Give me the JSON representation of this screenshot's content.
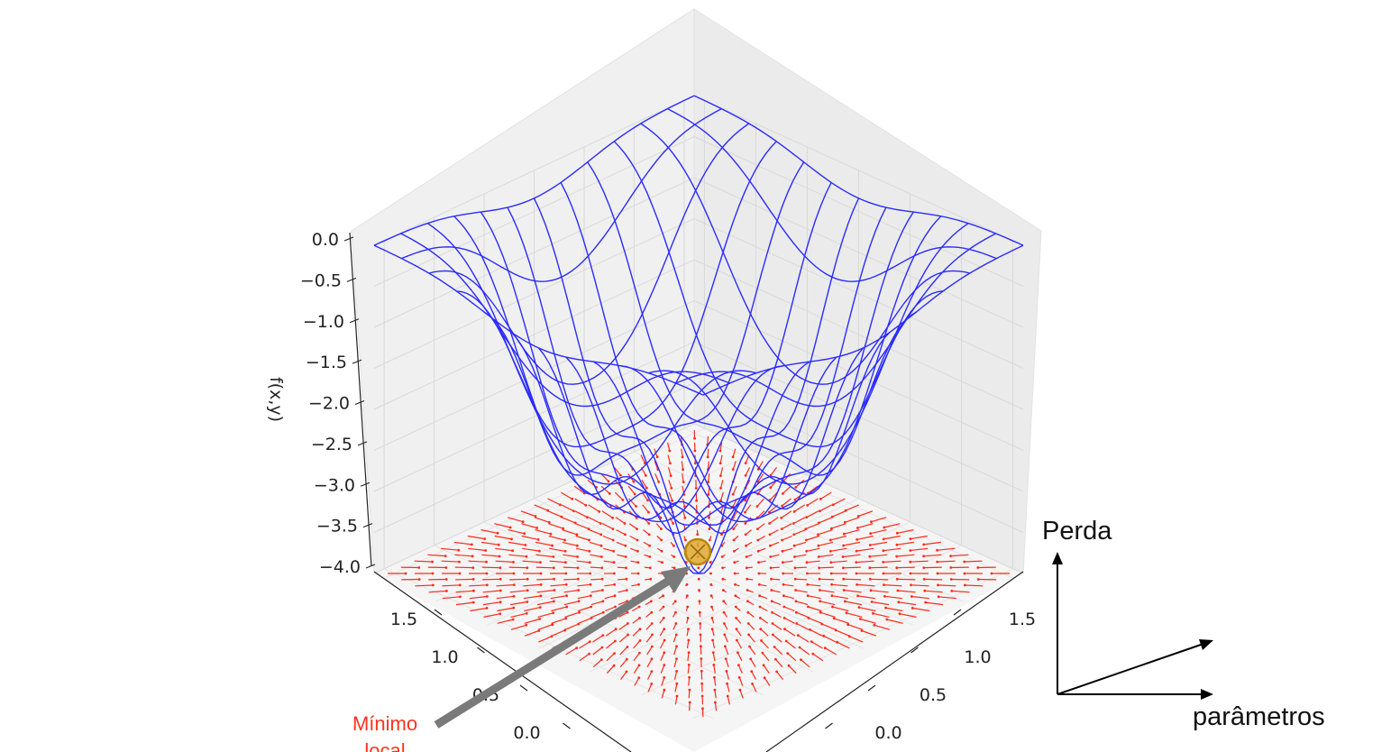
{
  "chart_data": {
    "type": "surface3d",
    "zlabel": "f(x,y)",
    "z_axis": {
      "ticks": [
        "0.0",
        "−0.5",
        "−1.0",
        "−1.5",
        "−2.0",
        "−2.5",
        "−3.0",
        "−3.5",
        "−4.0"
      ],
      "range": [
        -4.0,
        0.0
      ]
    },
    "x_axis": {
      "ticks": [
        "1.5",
        "1.0",
        "0.5",
        "0.0"
      ],
      "range": [
        -1.6,
        1.6
      ]
    },
    "y_axis": {
      "ticks": [
        "1.5",
        "1.0",
        "0.5",
        "0.0"
      ],
      "range": [
        -1.6,
        1.6
      ]
    },
    "surface": {
      "color": "#2b2bff",
      "grid_lines": 13,
      "description_function": "f = -4 exp(-(x^2+y^2)/0.5) variant with ring ridge"
    },
    "quiver": {
      "color": "#ff2a1a",
      "grid": 24
    },
    "minimum": {
      "x": 0.0,
      "y": 0.0,
      "z": -4.0,
      "color": "#d49a1e"
    },
    "grid": true
  },
  "annotation": {
    "line1": "Mínimo",
    "line2": "local",
    "color": "#ff3322"
  },
  "diagram": {
    "vertical_label": "Perda",
    "horizontal_label": "parâmetros"
  }
}
